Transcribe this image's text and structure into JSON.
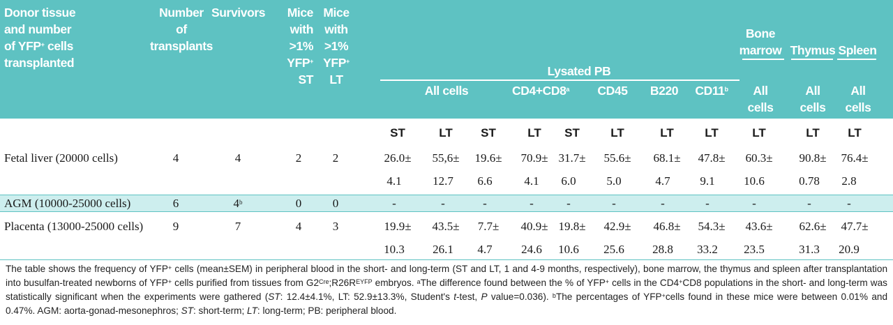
{
  "header": {
    "donor_l1": "Donor tissue",
    "donor_l2": "and number",
    "donor_l3a": "of YFP",
    "donor_l3sup": "+",
    "donor_l3b": " cells",
    "donor_l4": "transplanted",
    "num_l1": "Number",
    "num_l2": "of",
    "num_l3": "transplants",
    "survivors": "Survivors",
    "mst_l1": "Mice",
    "mst_l2": "with",
    "mst_l3": ">1%",
    "mst_l4": "YFP",
    "mst_l4sup": "+",
    "mst_l5": "ST",
    "mlt_l1": "Mice",
    "mlt_l2": "with",
    "mlt_l3": ">1%",
    "mlt_l4": "YFP",
    "mlt_l4sup": "+",
    "mlt_l5": "LT",
    "lysated_pb": "Lysated PB",
    "all_cells": "All cells",
    "cd4cd8": "CD4+CD8",
    "cd4cd8_sup": "a",
    "cd45": "CD45",
    "b220": "B220",
    "cd11": "CD11",
    "cd11_sup": "b",
    "bm_l1": "Bone",
    "bm_l2": "marrow",
    "thymus": "Thymus",
    "spleen": "Spleen",
    "sub_all": "All",
    "sub_cells": "cells"
  },
  "subheader": [
    "ST",
    "LT",
    "ST",
    "LT",
    "ST",
    "LT",
    "LT",
    "LT",
    "LT",
    "LT",
    "LT"
  ],
  "rows": [
    {
      "label": "Fetal liver (20000 cells)",
      "transplants": "4",
      "survivors": "4",
      "survivors_sup": "",
      "mice_st": "2",
      "mice_lt": "2",
      "values": [
        "26.0±",
        "55,6±",
        "19.6±",
        "70.9±",
        "31.7±",
        "55.6±",
        "68.1±",
        "47.8±",
        "60.3±",
        "90.8±",
        "76.4±"
      ],
      "errors": [
        "4.1",
        "12.7",
        "6.6",
        "4.1",
        "6.0",
        "5.0",
        "4.7",
        "9.1",
        "10.6",
        "0.78",
        "2.8"
      ]
    },
    {
      "label": "AGM (10000-25000 cells)",
      "transplants": "6",
      "survivors": "4",
      "survivors_sup": "b",
      "mice_st": "0",
      "mice_lt": "0",
      "values": [
        "-",
        "-",
        "-",
        "-",
        "-",
        "-",
        "-",
        "-",
        "-",
        "-",
        "-"
      ],
      "errors": []
    },
    {
      "label": "Placenta (13000-25000 cells)",
      "transplants": "9",
      "survivors": "7",
      "survivors_sup": "",
      "mice_st": "4",
      "mice_lt": "3",
      "values": [
        "19.9±",
        "43.5±",
        "7.7±",
        "40.9±",
        "19.8±",
        "42.9±",
        "46.8±",
        "54.3±",
        "43.6±",
        "62.6±",
        "47.7±"
      ],
      "errors": [
        "10.3",
        "26.1",
        "4.7",
        "24.6",
        "10.6",
        "25.6",
        "28.8",
        "33.2",
        "23.5",
        "31.3",
        "20.9"
      ]
    }
  ],
  "footnote": {
    "p1": "The table shows the frequency of YFP",
    "p1sup": "+",
    "p2": " cells (mean±SEM) in peripheral blood in the short- and long-term (ST and LT, 1 and 4-9 months, respectively), bone marrow, the thymus and spleen  after transplantation  into busulfan-treated newborns of YFP",
    "p2sup": "+",
    "p3": " cells purified from tissues from G2",
    "p3sup": "Cre",
    "p4": ";R26R",
    "p4sup": "EYFP",
    "p5": " embryos. ",
    "p5sup": "a",
    "p6": "The difference found between the % of YFP",
    "p6sup": "+",
    "p7": " cells in the CD4",
    "p7sup": "+",
    "p8": "CD8 populations in the short- and long-term was statistically significant when the experiments were gathered  (",
    "p8i": "ST",
    "p9": ": 12.4±4.1%, LT: 52.9±13.3%, Student's ",
    "p9i": "t",
    "p10": "-test, ",
    "p10i": "P",
    "p11": " value=0.036). ",
    "p11sup": "b",
    "p12": "The percentages of YFP",
    "p12sup": "+",
    "p13": "cells found in these mice were between 0.01% and 0.47%. AGM: aorta-gonad-mesonephros; ",
    "p13i": "ST",
    "p14": ": short-term; ",
    "p14i": "LT",
    "p15": ": long-term; PB: peripheral blood."
  }
}
